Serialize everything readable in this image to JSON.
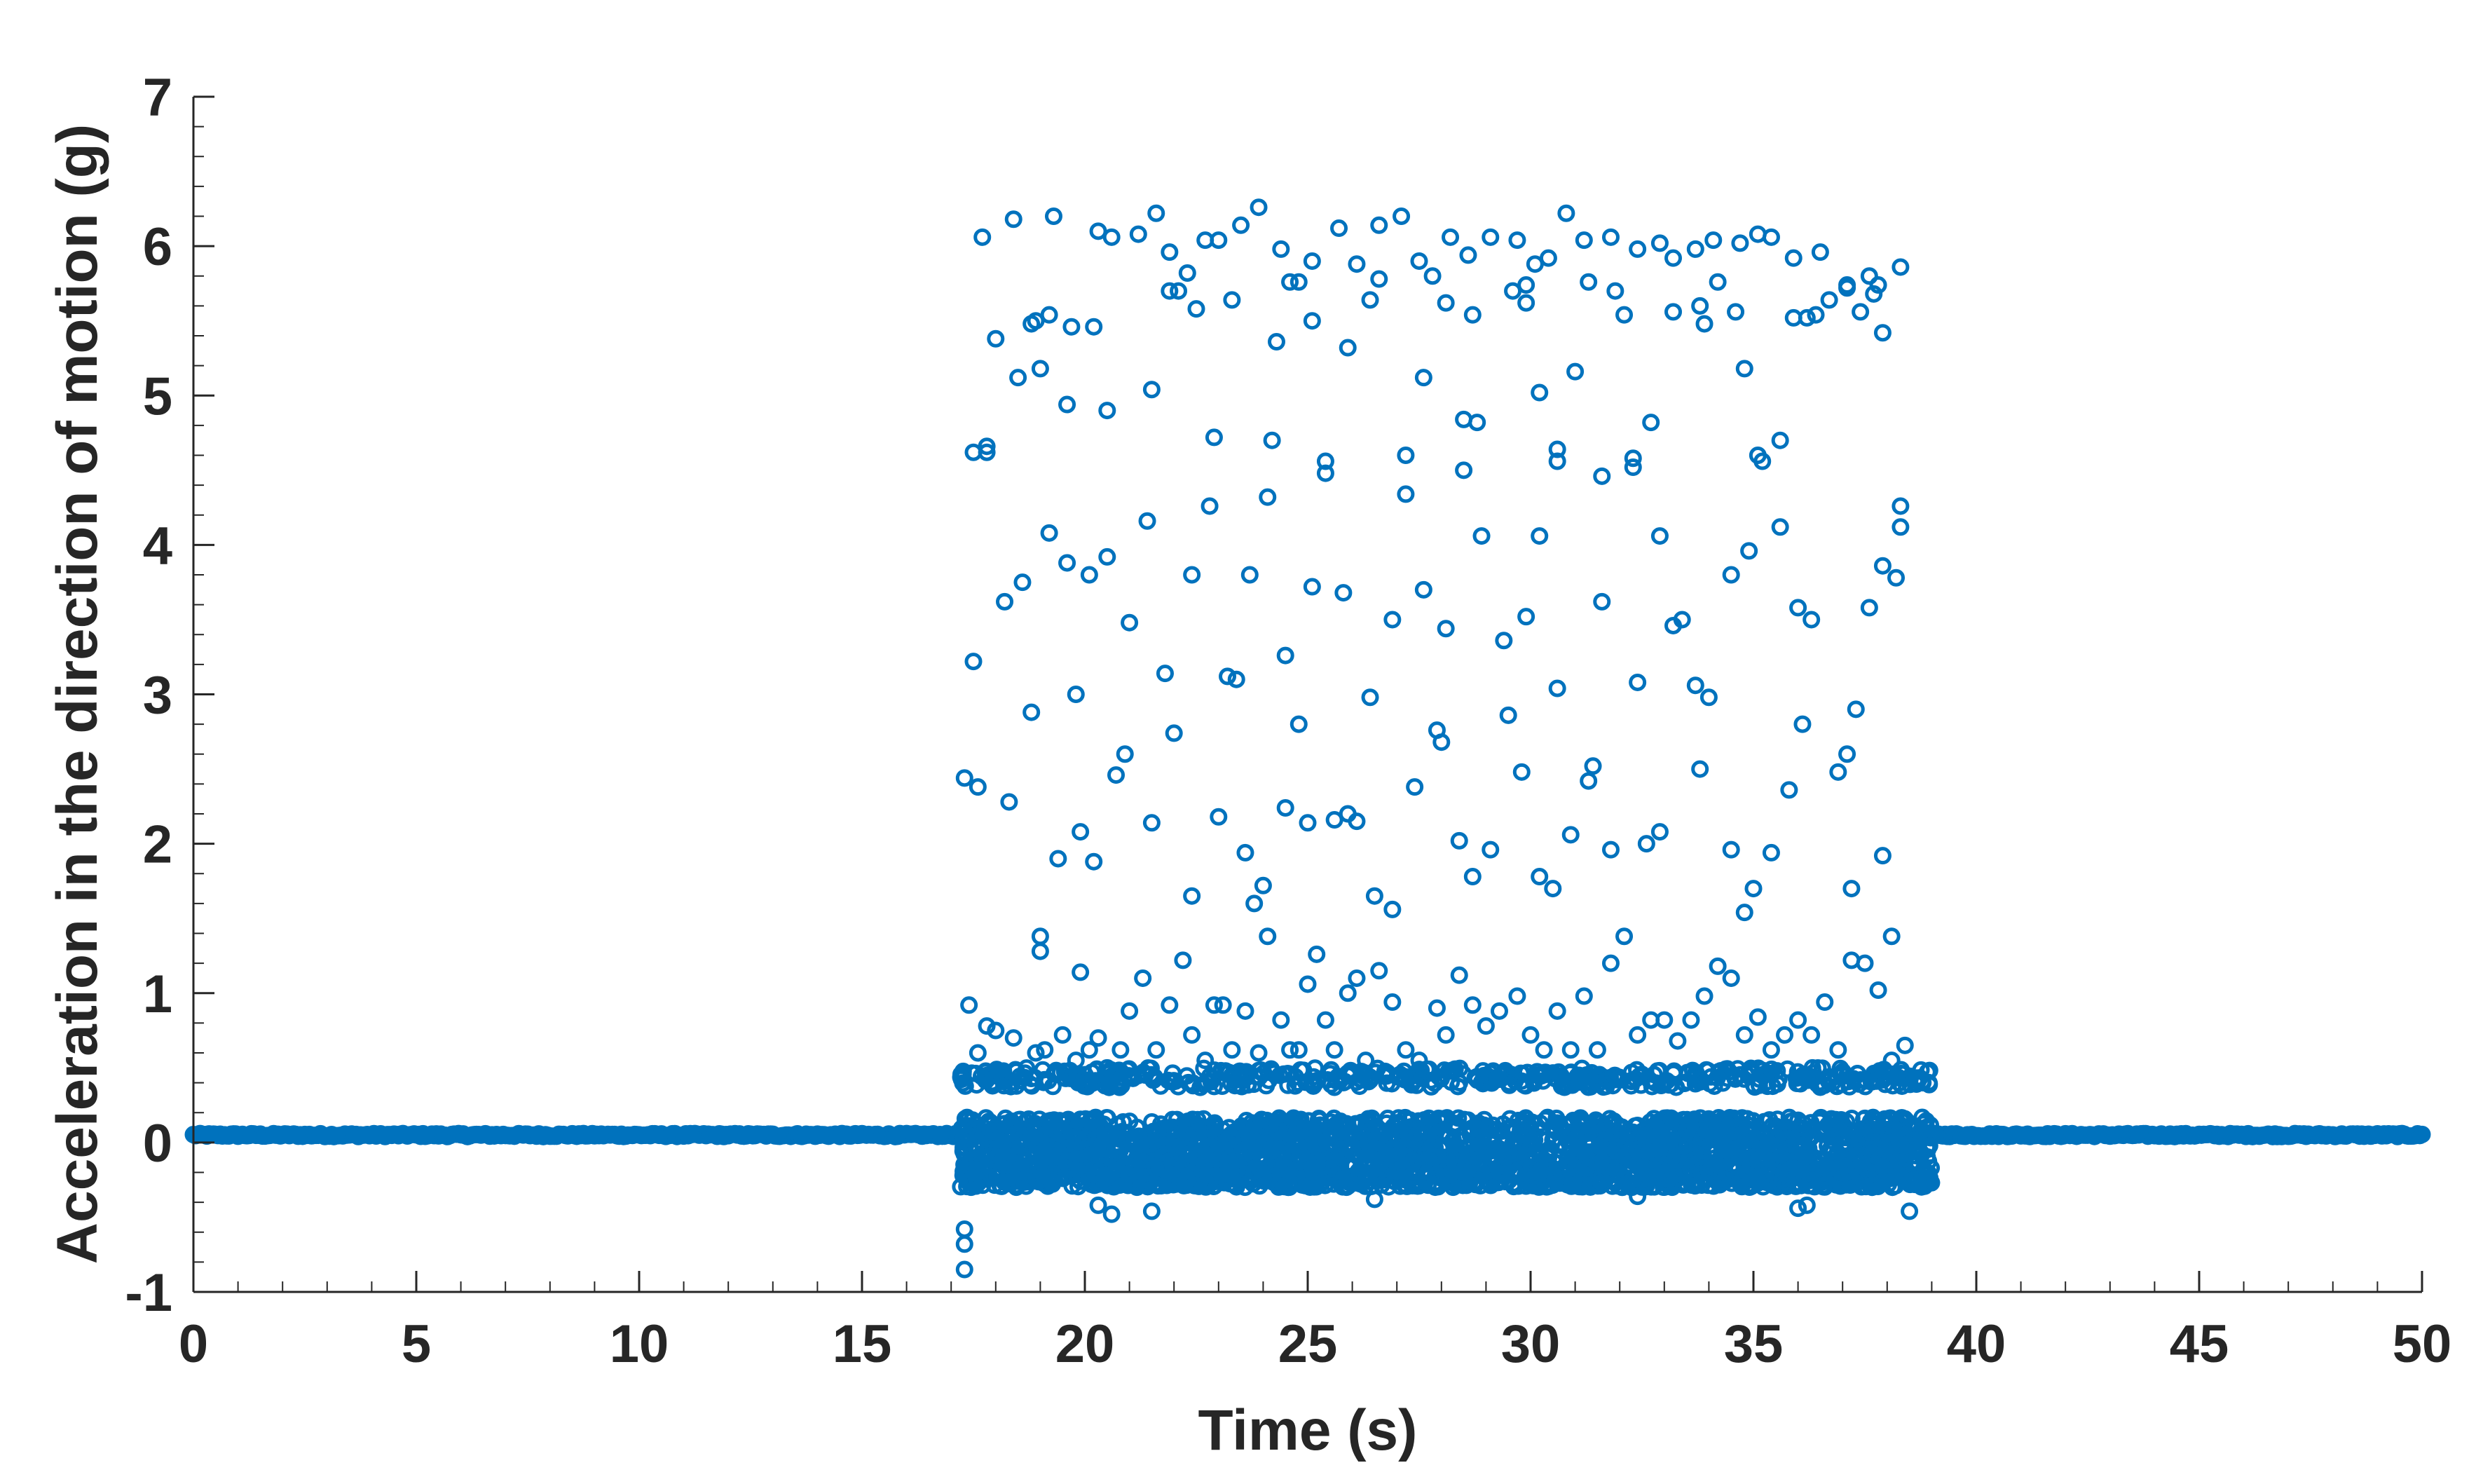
{
  "chart_data": {
    "type": "scatter",
    "title": "",
    "xlabel": "Time (s)",
    "ylabel": "Acceleration in the direction of motion (g)",
    "xlim": [
      0,
      50
    ],
    "ylim": [
      -1,
      7
    ],
    "x_ticks": [
      0,
      5,
      10,
      15,
      20,
      25,
      30,
      35,
      40,
      45,
      50
    ],
    "y_ticks": [
      -1,
      0,
      1,
      2,
      3,
      4,
      5,
      6,
      7
    ],
    "x_tick_labels": [
      "0",
      "5",
      "10",
      "15",
      "20",
      "25",
      "30",
      "35",
      "40",
      "45",
      "50"
    ],
    "y_tick_labels": [
      "-1",
      "0",
      "1",
      "2",
      "3",
      "4",
      "5",
      "6",
      "7"
    ],
    "grid": false,
    "legend": "none",
    "marker": "open-circle",
    "color": "#0072BD",
    "series": [
      {
        "baseline_segments": [
          {
            "x_range": [
              0,
              17.2
            ],
            "y": 0.05,
            "spread": 0.02
          },
          {
            "x_range": [
              39.0,
              50
            ],
            "y": 0.05,
            "spread": 0.02
          }
        ],
        "dense_band": {
          "x_range": [
            17.2,
            39.0
          ],
          "y_range": [
            -0.3,
            0.5
          ]
        },
        "points": [
          [
            17.3,
            -0.85
          ],
          [
            17.3,
            -0.68
          ],
          [
            17.3,
            -0.58
          ],
          [
            17.4,
            0.92
          ],
          [
            17.6,
            0.6
          ],
          [
            17.8,
            0.78
          ],
          [
            18.0,
            0.75
          ],
          [
            18.4,
            0.7
          ],
          [
            18.9,
            0.6
          ],
          [
            19.1,
            0.62
          ],
          [
            19.5,
            0.72
          ],
          [
            19.8,
            0.55
          ],
          [
            20.1,
            0.62
          ],
          [
            20.3,
            0.7
          ],
          [
            20.5,
            0.5
          ],
          [
            20.8,
            0.62
          ],
          [
            21.0,
            0.88
          ],
          [
            21.3,
            1.1
          ],
          [
            21.6,
            0.62
          ],
          [
            21.9,
            0.92
          ],
          [
            22.2,
            1.22
          ],
          [
            22.4,
            0.72
          ],
          [
            22.7,
            0.55
          ],
          [
            22.9,
            0.92
          ],
          [
            23.1,
            0.92
          ],
          [
            23.3,
            0.62
          ],
          [
            23.6,
            0.88
          ],
          [
            23.9,
            0.6
          ],
          [
            24.1,
            1.38
          ],
          [
            24.4,
            0.82
          ],
          [
            24.6,
            0.62
          ],
          [
            24.8,
            0.62
          ],
          [
            25.0,
            1.06
          ],
          [
            25.2,
            1.26
          ],
          [
            25.4,
            0.82
          ],
          [
            25.6,
            0.62
          ],
          [
            25.9,
            1.0
          ],
          [
            26.1,
            1.1
          ],
          [
            26.3,
            0.55
          ],
          [
            26.6,
            1.15
          ],
          [
            26.9,
            0.94
          ],
          [
            27.2,
            0.62
          ],
          [
            27.5,
            0.55
          ],
          [
            27.9,
            0.9
          ],
          [
            28.1,
            0.72
          ],
          [
            28.4,
            1.12
          ],
          [
            28.7,
            0.92
          ],
          [
            29.0,
            0.78
          ],
          [
            29.3,
            0.88
          ],
          [
            29.7,
            0.98
          ],
          [
            30.0,
            0.72
          ],
          [
            30.3,
            0.62
          ],
          [
            30.6,
            0.88
          ],
          [
            30.9,
            0.62
          ],
          [
            31.2,
            0.98
          ],
          [
            31.5,
            0.62
          ],
          [
            31.8,
            1.2
          ],
          [
            32.1,
            1.38
          ],
          [
            32.4,
            0.72
          ],
          [
            32.7,
            0.82
          ],
          [
            33.0,
            0.82
          ],
          [
            33.3,
            0.68
          ],
          [
            33.6,
            0.82
          ],
          [
            33.9,
            0.98
          ],
          [
            34.2,
            1.18
          ],
          [
            34.5,
            1.1
          ],
          [
            34.8,
            0.72
          ],
          [
            35.1,
            0.84
          ],
          [
            35.4,
            0.62
          ],
          [
            35.7,
            0.72
          ],
          [
            36.0,
            0.82
          ],
          [
            36.3,
            0.72
          ],
          [
            36.6,
            0.94
          ],
          [
            36.9,
            0.62
          ],
          [
            37.2,
            1.22
          ],
          [
            37.5,
            1.2
          ],
          [
            37.8,
            1.02
          ],
          [
            38.1,
            0.55
          ],
          [
            38.4,
            0.65
          ],
          [
            38.1,
            1.38
          ],
          [
            20.3,
            -0.42
          ],
          [
            20.6,
            -0.48
          ],
          [
            21.5,
            -0.46
          ],
          [
            36.0,
            -0.44
          ],
          [
            36.2,
            -0.42
          ],
          [
            38.5,
            -0.46
          ],
          [
            26.5,
            -0.38
          ],
          [
            32.4,
            -0.36
          ],
          [
            17.3,
            2.44
          ],
          [
            17.6,
            2.38
          ],
          [
            18.3,
            2.28
          ],
          [
            19.0,
            1.38
          ],
          [
            19.0,
            1.28
          ],
          [
            19.4,
            1.9
          ],
          [
            19.9,
            2.08
          ],
          [
            19.9,
            1.14
          ],
          [
            20.2,
            1.88
          ],
          [
            20.7,
            2.46
          ],
          [
            20.9,
            2.6
          ],
          [
            21.5,
            2.14
          ],
          [
            22.0,
            2.74
          ],
          [
            22.4,
            1.65
          ],
          [
            23.0,
            2.18
          ],
          [
            23.6,
            1.94
          ],
          [
            23.8,
            1.6
          ],
          [
            24.0,
            1.72
          ],
          [
            24.5,
            2.24
          ],
          [
            24.8,
            2.8
          ],
          [
            25.0,
            2.14
          ],
          [
            25.6,
            2.16
          ],
          [
            25.9,
            2.2
          ],
          [
            26.1,
            2.15
          ],
          [
            26.5,
            1.65
          ],
          [
            26.9,
            1.56
          ],
          [
            27.4,
            2.38
          ],
          [
            27.9,
            2.76
          ],
          [
            28.0,
            2.68
          ],
          [
            28.4,
            2.02
          ],
          [
            28.7,
            1.78
          ],
          [
            29.1,
            1.96
          ],
          [
            29.5,
            2.86
          ],
          [
            29.8,
            2.48
          ],
          [
            30.2,
            1.78
          ],
          [
            30.5,
            1.7
          ],
          [
            30.9,
            2.06
          ],
          [
            31.3,
            2.42
          ],
          [
            31.4,
            2.52
          ],
          [
            31.8,
            1.96
          ],
          [
            32.6,
            2.0
          ],
          [
            32.9,
            2.08
          ],
          [
            33.2,
            3.46
          ],
          [
            33.8,
            2.5
          ],
          [
            34.5,
            1.96
          ],
          [
            34.8,
            1.54
          ],
          [
            35.0,
            1.7
          ],
          [
            35.4,
            1.94
          ],
          [
            35.8,
            2.36
          ],
          [
            36.1,
            2.8
          ],
          [
            36.9,
            2.48
          ],
          [
            37.1,
            2.6
          ],
          [
            37.2,
            1.7
          ],
          [
            37.9,
            1.92
          ],
          [
            37.3,
            2.9
          ],
          [
            17.5,
            3.22
          ],
          [
            18.2,
            3.62
          ],
          [
            18.6,
            3.75
          ],
          [
            18.8,
            2.88
          ],
          [
            19.2,
            4.08
          ],
          [
            19.6,
            3.88
          ],
          [
            19.8,
            3.0
          ],
          [
            20.1,
            3.8
          ],
          [
            20.5,
            3.92
          ],
          [
            21.0,
            3.48
          ],
          [
            21.4,
            4.16
          ],
          [
            21.8,
            3.14
          ],
          [
            22.4,
            3.8
          ],
          [
            22.8,
            4.26
          ],
          [
            23.2,
            3.12
          ],
          [
            23.4,
            3.1
          ],
          [
            23.7,
            3.8
          ],
          [
            24.1,
            4.32
          ],
          [
            24.5,
            3.26
          ],
          [
            25.1,
            3.72
          ],
          [
            25.8,
            3.68
          ],
          [
            26.4,
            2.98
          ],
          [
            26.9,
            3.5
          ],
          [
            27.2,
            4.34
          ],
          [
            27.6,
            3.7
          ],
          [
            28.1,
            3.44
          ],
          [
            28.9,
            4.06
          ],
          [
            29.4,
            3.36
          ],
          [
            29.9,
            3.52
          ],
          [
            30.2,
            4.06
          ],
          [
            30.6,
            3.04
          ],
          [
            31.6,
            3.62
          ],
          [
            31.6,
            4.46
          ],
          [
            32.4,
            3.08
          ],
          [
            32.9,
            4.06
          ],
          [
            33.4,
            3.5
          ],
          [
            33.7,
            3.06
          ],
          [
            34.0,
            2.98
          ],
          [
            34.5,
            3.8
          ],
          [
            34.9,
            3.96
          ],
          [
            35.6,
            4.12
          ],
          [
            36.0,
            3.58
          ],
          [
            36.3,
            3.5
          ],
          [
            37.6,
            3.58
          ],
          [
            37.9,
            3.86
          ],
          [
            38.2,
            3.78
          ],
          [
            38.3,
            4.12
          ],
          [
            17.5,
            4.62
          ],
          [
            17.8,
            4.66
          ],
          [
            17.8,
            4.62
          ],
          [
            19.6,
            4.94
          ],
          [
            20.2,
            5.46
          ],
          [
            20.5,
            4.9
          ],
          [
            21.5,
            5.04
          ],
          [
            22.9,
            4.72
          ],
          [
            24.2,
            4.7
          ],
          [
            25.4,
            4.56
          ],
          [
            25.4,
            4.48
          ],
          [
            27.2,
            4.6
          ],
          [
            27.6,
            5.12
          ],
          [
            28.5,
            4.84
          ],
          [
            28.5,
            4.5
          ],
          [
            28.8,
            4.82
          ],
          [
            30.6,
            4.64
          ],
          [
            30.6,
            4.56
          ],
          [
            32.3,
            4.58
          ],
          [
            32.3,
            4.52
          ],
          [
            32.7,
            4.82
          ],
          [
            35.1,
            4.6
          ],
          [
            35.2,
            4.56
          ],
          [
            35.6,
            4.7
          ],
          [
            34.8,
            5.18
          ],
          [
            30.2,
            5.02
          ],
          [
            31.0,
            5.16
          ],
          [
            38.3,
            4.26
          ],
          [
            37.9,
            5.42
          ],
          [
            25.9,
            5.32
          ],
          [
            24.3,
            5.36
          ],
          [
            18.9,
            5.5
          ],
          [
            19.2,
            5.54
          ],
          [
            19.7,
            5.46
          ],
          [
            18.5,
            5.12
          ],
          [
            19.0,
            5.18
          ],
          [
            18.0,
            5.38
          ],
          [
            22.5,
            5.58
          ],
          [
            21.9,
            5.7
          ],
          [
            22.1,
            5.7
          ],
          [
            23.3,
            5.64
          ],
          [
            24.6,
            5.76
          ],
          [
            24.8,
            5.76
          ],
          [
            25.1,
            5.5
          ],
          [
            26.4,
            5.64
          ],
          [
            26.6,
            5.78
          ],
          [
            27.8,
            5.8
          ],
          [
            28.1,
            5.62
          ],
          [
            28.7,
            5.54
          ],
          [
            29.6,
            5.7
          ],
          [
            29.9,
            5.74
          ],
          [
            31.3,
            5.76
          ],
          [
            31.9,
            5.7
          ],
          [
            32.1,
            5.54
          ],
          [
            33.2,
            5.56
          ],
          [
            33.9,
            5.48
          ],
          [
            34.2,
            5.76
          ],
          [
            34.6,
            5.56
          ],
          [
            35.9,
            5.52
          ],
          [
            36.2,
            5.52
          ],
          [
            36.4,
            5.54
          ],
          [
            36.7,
            5.64
          ],
          [
            37.1,
            5.72
          ],
          [
            37.4,
            5.56
          ],
          [
            37.7,
            5.68
          ],
          [
            37.8,
            5.74
          ],
          [
            17.7,
            6.06
          ],
          [
            18.4,
            6.18
          ],
          [
            19.3,
            6.2
          ],
          [
            20.3,
            6.1
          ],
          [
            20.6,
            6.06
          ],
          [
            21.2,
            6.08
          ],
          [
            21.6,
            6.22
          ],
          [
            22.3,
            5.82
          ],
          [
            22.7,
            6.04
          ],
          [
            23.0,
            6.04
          ],
          [
            23.5,
            6.14
          ],
          [
            23.9,
            6.26
          ],
          [
            24.4,
            5.98
          ],
          [
            25.1,
            5.9
          ],
          [
            25.7,
            6.12
          ],
          [
            26.1,
            5.88
          ],
          [
            26.6,
            6.14
          ],
          [
            27.1,
            6.2
          ],
          [
            27.5,
            5.9
          ],
          [
            28.2,
            6.06
          ],
          [
            28.6,
            5.94
          ],
          [
            29.1,
            6.06
          ],
          [
            29.7,
            6.04
          ],
          [
            30.1,
            5.88
          ],
          [
            30.4,
            5.92
          ],
          [
            30.8,
            6.22
          ],
          [
            31.2,
            6.04
          ],
          [
            31.8,
            6.06
          ],
          [
            32.4,
            5.98
          ],
          [
            32.9,
            6.02
          ],
          [
            33.2,
            5.92
          ],
          [
            33.7,
            5.98
          ],
          [
            34.1,
            6.04
          ],
          [
            34.7,
            6.02
          ],
          [
            35.1,
            6.08
          ],
          [
            35.4,
            6.06
          ],
          [
            35.9,
            5.92
          ],
          [
            36.5,
            5.96
          ],
          [
            37.1,
            5.74
          ],
          [
            37.6,
            5.8
          ],
          [
            38.3,
            5.86
          ],
          [
            21.9,
            5.96
          ],
          [
            18.8,
            5.48
          ],
          [
            29.9,
            5.62
          ],
          [
            33.8,
            5.6
          ]
        ]
      }
    ]
  }
}
